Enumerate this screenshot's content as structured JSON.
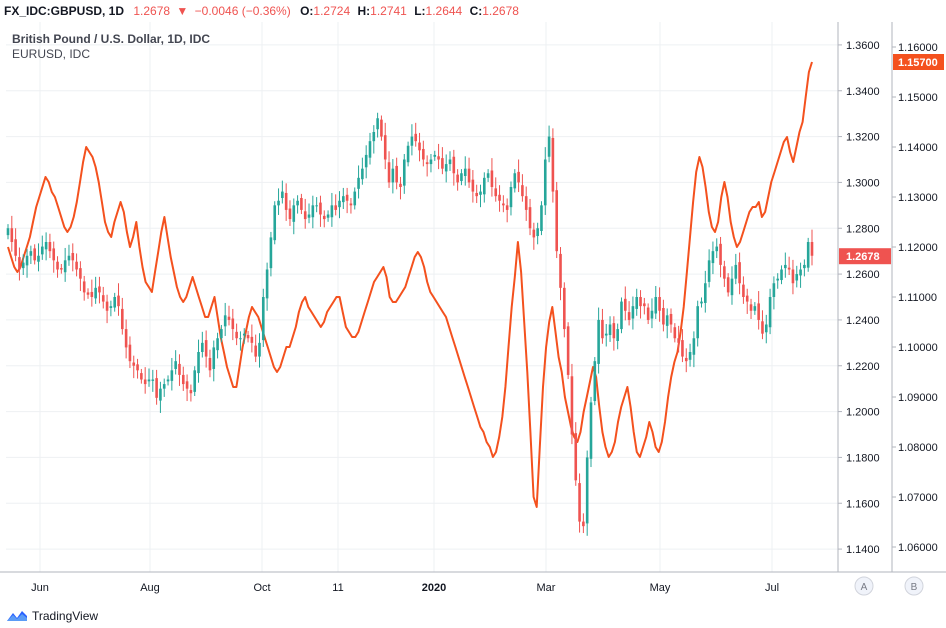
{
  "header": {
    "symbol": "FX_IDC:GBPUSD, 1D",
    "last": "1.2678",
    "arrow": "▼",
    "change": "−0.0046 (−0.36%)",
    "o_label": "O:",
    "o_value": "1.2724",
    "h_label": "H:",
    "h_value": "1.2741",
    "l_label": "L:",
    "l_value": "1.2644",
    "c_label": "C:",
    "c_value": "1.2678"
  },
  "legend": {
    "title": "British Pound / U.S. Dollar, 1D, IDC",
    "overlay": "EURUSD, IDC"
  },
  "footer": {
    "brand": "TradingView"
  },
  "colors": {
    "up": "#26a69a",
    "down": "#ef5350",
    "overlay": "#f4511e",
    "grid": "#eef0f3",
    "axis": "#b2b5be",
    "label_bg": "#f4511e"
  },
  "chart_data": {
    "type": "line",
    "x_tick_labels": [
      "Jun",
      "Aug",
      "Oct",
      "11",
      "2020",
      "Mar",
      "May",
      "Jul"
    ],
    "axis_buttons": [
      "A",
      "B"
    ],
    "y_left": {
      "ticks": [
        "1.3600",
        "1.3400",
        "1.3200",
        "1.3000",
        "1.2800",
        "1.2600",
        "1.2400",
        "1.2200",
        "1.2000",
        "1.1800",
        "1.1600",
        "1.1400"
      ],
      "range": [
        1.13,
        1.37
      ],
      "current_label": "1.2678"
    },
    "y_right": {
      "ticks": [
        "1.16000",
        "1.15000",
        "1.14000",
        "1.13000",
        "1.12000",
        "1.11000",
        "1.10000",
        "1.09000",
        "1.08000",
        "1.07000",
        "1.06000"
      ],
      "range": [
        1.055,
        1.165
      ],
      "current_label": "1.15700"
    },
    "series": [
      {
        "name": "FX_IDC:GBPUSD",
        "style": "candlestick",
        "values": [
          1.28,
          1.274,
          1.268,
          1.262,
          1.265,
          1.268,
          1.27,
          1.266,
          1.268,
          1.272,
          1.274,
          1.27,
          1.266,
          1.262,
          1.262,
          1.266,
          1.268,
          1.266,
          1.262,
          1.258,
          1.252,
          1.251,
          1.25,
          1.254,
          1.252,
          1.248,
          1.244,
          1.246,
          1.25,
          1.246,
          1.236,
          1.228,
          1.222,
          1.22,
          1.218,
          1.214,
          1.212,
          1.214,
          1.214,
          1.206,
          1.21,
          1.212,
          1.214,
          1.218,
          1.222,
          1.216,
          1.212,
          1.21,
          1.208,
          1.218,
          1.226,
          1.23,
          1.224,
          1.218,
          1.228,
          1.232,
          1.236,
          1.242,
          1.24,
          1.236,
          1.232,
          1.232,
          1.234,
          1.232,
          1.23,
          1.224,
          1.23,
          1.25,
          1.262,
          1.276,
          1.29,
          1.292,
          1.296,
          1.288,
          1.284,
          1.29,
          1.292,
          1.288,
          1.284,
          1.286,
          1.29,
          1.29,
          1.286,
          1.284,
          1.286,
          1.29,
          1.288,
          1.292,
          1.294,
          1.292,
          1.29,
          1.296,
          1.302,
          1.306,
          1.312,
          1.318,
          1.322,
          1.328,
          1.32,
          1.31,
          1.3,
          1.306,
          1.3,
          1.298,
          1.31,
          1.316,
          1.32,
          1.318,
          1.314,
          1.31,
          1.308,
          1.31,
          1.312,
          1.31,
          1.306,
          1.308,
          1.31,
          1.304,
          1.3,
          1.304,
          1.306,
          1.3,
          1.296,
          1.294,
          1.296,
          1.302,
          1.304,
          1.298,
          1.294,
          1.292,
          1.29,
          1.288,
          1.298,
          1.304,
          1.3,
          1.294,
          1.288,
          1.28,
          1.276,
          1.28,
          1.29,
          1.31,
          1.32,
          1.296,
          1.27,
          1.254,
          1.236,
          1.216,
          1.19,
          1.17,
          1.152,
          1.15,
          1.18,
          1.204,
          1.222,
          1.24,
          1.232,
          1.234,
          1.238,
          1.232,
          1.236,
          1.248,
          1.244,
          1.24,
          1.246,
          1.25,
          1.246,
          1.246,
          1.24,
          1.244,
          1.25,
          1.244,
          1.238,
          1.242,
          1.238,
          1.232,
          1.23,
          1.224,
          1.222,
          1.226,
          1.232,
          1.246,
          1.248,
          1.256,
          1.266,
          1.27,
          1.272,
          1.264,
          1.258,
          1.252,
          1.258,
          1.264,
          1.256,
          1.25,
          1.248,
          1.244,
          1.246,
          1.24,
          1.234,
          1.238,
          1.25,
          1.256,
          1.258,
          1.262,
          1.264,
          1.262,
          1.256,
          1.26,
          1.262,
          1.264,
          1.274,
          1.268
        ]
      },
      {
        "name": "EURUSD",
        "style": "line",
        "values": [
          1.12,
          1.118,
          1.116,
          1.115,
          1.116,
          1.118,
          1.12,
          1.122,
          1.125,
          1.128,
          1.13,
          1.132,
          1.134,
          1.133,
          1.131,
          1.13,
          1.128,
          1.126,
          1.124,
          1.123,
          1.124,
          1.126,
          1.129,
          1.133,
          1.137,
          1.14,
          1.139,
          1.138,
          1.136,
          1.133,
          1.129,
          1.125,
          1.123,
          1.122,
          1.125,
          1.127,
          1.129,
          1.127,
          1.123,
          1.12,
          1.122,
          1.125,
          1.12,
          1.116,
          1.113,
          1.112,
          1.111,
          1.115,
          1.119,
          1.123,
          1.126,
          1.122,
          1.118,
          1.115,
          1.112,
          1.11,
          1.109,
          1.11,
          1.112,
          1.114,
          1.112,
          1.11,
          1.108,
          1.106,
          1.106,
          1.108,
          1.11,
          1.106,
          1.102,
          1.099,
          1.096,
          1.094,
          1.092,
          1.092,
          1.096,
          1.1,
          1.103,
          1.106,
          1.108,
          1.107,
          1.106,
          1.104,
          1.102,
          1.1,
          1.098,
          1.096,
          1.095,
          1.096,
          1.098,
          1.1,
          1.1,
          1.102,
          1.104,
          1.107,
          1.109,
          1.11,
          1.108,
          1.107,
          1.106,
          1.105,
          1.104,
          1.105,
          1.107,
          1.108,
          1.109,
          1.11,
          1.11,
          1.107,
          1.104,
          1.103,
          1.102,
          1.102,
          1.103,
          1.105,
          1.107,
          1.109,
          1.111,
          1.113,
          1.114,
          1.115,
          1.116,
          1.114,
          1.11,
          1.109,
          1.109,
          1.11,
          1.111,
          1.112,
          1.114,
          1.116,
          1.118,
          1.119,
          1.118,
          1.116,
          1.113,
          1.111,
          1.11,
          1.109,
          1.108,
          1.107,
          1.106,
          1.104,
          1.102,
          1.1,
          1.098,
          1.096,
          1.094,
          1.092,
          1.09,
          1.088,
          1.086,
          1.084,
          1.083,
          1.081,
          1.08,
          1.078,
          1.079,
          1.082,
          1.086,
          1.092,
          1.1,
          1.108,
          1.114,
          1.121,
          1.115,
          1.105,
          1.095,
          1.083,
          1.07,
          1.068,
          1.08,
          1.092,
          1.1,
          1.105,
          1.108,
          1.103,
          1.098,
          1.095,
          1.09,
          1.087,
          1.084,
          1.082,
          1.081,
          1.083,
          1.087,
          1.09,
          1.093,
          1.096,
          1.094,
          1.088,
          1.083,
          1.08,
          1.078,
          1.079,
          1.081,
          1.085,
          1.088,
          1.09,
          1.092,
          1.088,
          1.083,
          1.079,
          1.078,
          1.08,
          1.082,
          1.085,
          1.083,
          1.08,
          1.079,
          1.081,
          1.085,
          1.09,
          1.094,
          1.097,
          1.099,
          1.103,
          1.108,
          1.115,
          1.122,
          1.129,
          1.135,
          1.138,
          1.136,
          1.132,
          1.127,
          1.124,
          1.123,
          1.125,
          1.13,
          1.133,
          1.13,
          1.125,
          1.122,
          1.12,
          1.121,
          1.123,
          1.125,
          1.127,
          1.128,
          1.128,
          1.129,
          1.126,
          1.127,
          1.13,
          1.133,
          1.135,
          1.137,
          1.139,
          1.141,
          1.142,
          1.139,
          1.137,
          1.14,
          1.143,
          1.145,
          1.15,
          1.155,
          1.157
        ]
      }
    ],
    "grid": true
  }
}
